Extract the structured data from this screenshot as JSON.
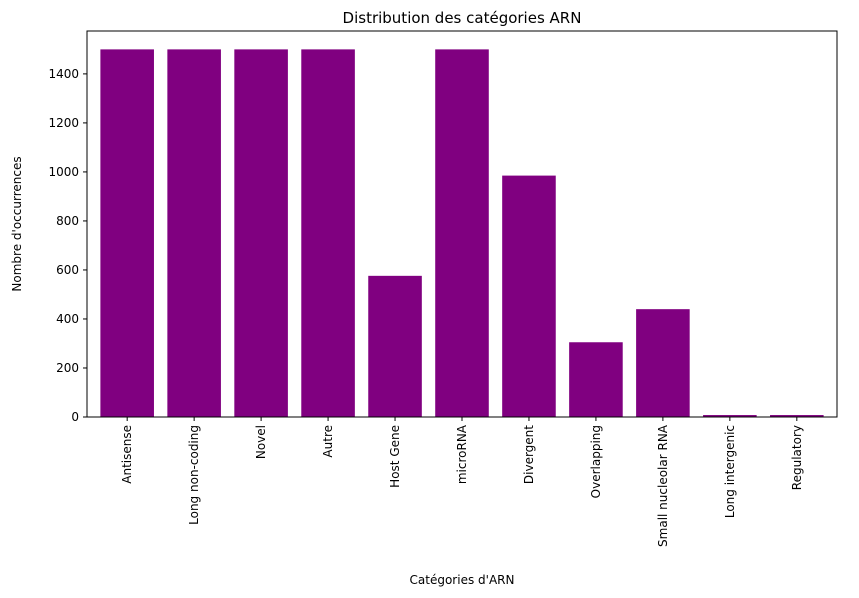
{
  "chart_data": {
    "type": "bar",
    "title": "Distribution des catégories ARN",
    "xlabel": "Catégories d'ARN",
    "ylabel": "Nombre d'occurrences",
    "categories": [
      "Antisense",
      "Long non-coding",
      "Novel",
      "Autre",
      "Host Gene",
      "microRNA",
      "Divergent",
      "Overlapping",
      "Small nucleolar RNA",
      "Long intergenic",
      "Regulatory"
    ],
    "values": [
      1500,
      1500,
      1500,
      1500,
      576,
      1500,
      985,
      305,
      440,
      8,
      8
    ],
    "ylim": [
      0,
      1575
    ],
    "yticks": [
      0,
      200,
      400,
      600,
      800,
      1000,
      1200,
      1400
    ],
    "bar_color": "#800080",
    "grid": false,
    "legend": "none"
  }
}
